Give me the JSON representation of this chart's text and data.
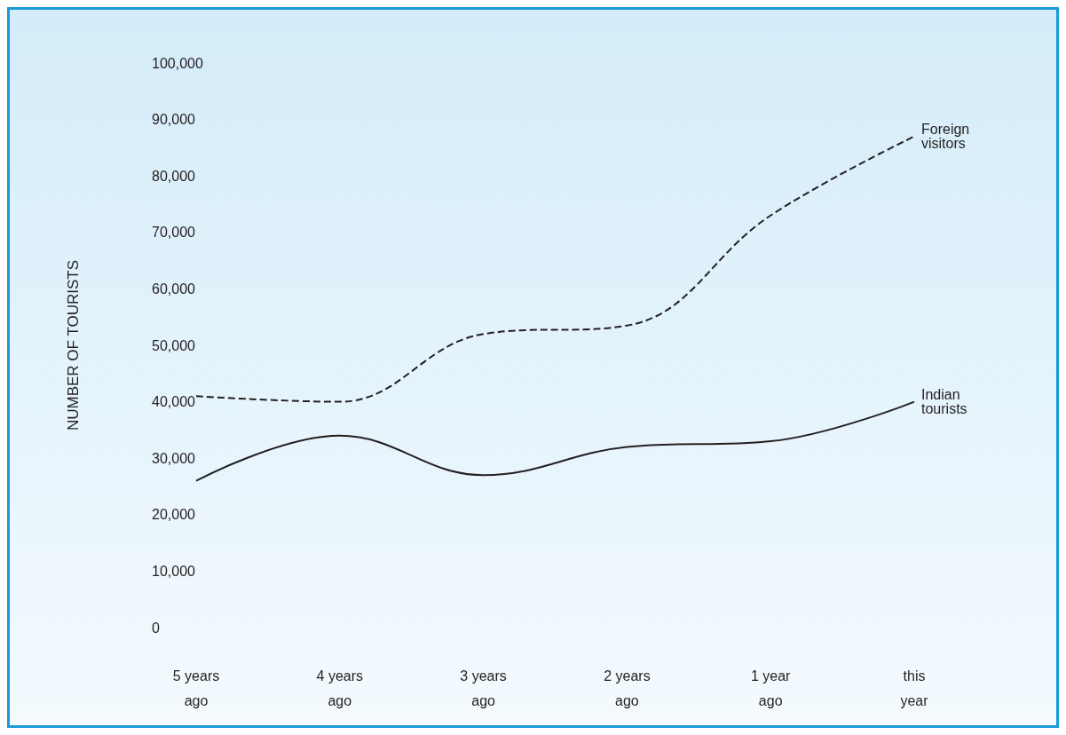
{
  "chart_data": {
    "type": "line",
    "ylabel": "NUMBER OF TOURISTS",
    "categories": [
      "5 years\nago",
      "4 years\nago",
      "3 years\nago",
      "2 years\nago",
      "1 year\nago",
      "this\nyear"
    ],
    "series": [
      {
        "name": "Foreign\nvisitors",
        "color": "#231f20",
        "line_style": "dashed",
        "values": [
          41000,
          40000,
          52000,
          53500,
          73000,
          87000
        ]
      },
      {
        "name": "Indian\ntourists",
        "color": "#231f20",
        "line_style": "solid",
        "values": [
          26000,
          34000,
          27000,
          32000,
          33000,
          40000
        ]
      }
    ],
    "ylim": [
      0,
      100000
    ],
    "yticks": [
      0,
      {
        "value": 10000,
        "label": "10,000"
      },
      {
        "value": 20000,
        "label": "20,000"
      },
      {
        "value": 30000,
        "label": "30,000"
      },
      {
        "value": 40000,
        "label": "40,000"
      },
      {
        "value": 50000,
        "label": "50,000"
      },
      {
        "value": 60000,
        "label": "60,000"
      },
      {
        "value": 70000,
        "label": "70,000"
      },
      {
        "value": 80000,
        "label": "80,000"
      },
      {
        "value": 90000,
        "label": "90,000"
      },
      {
        "value": 100000,
        "label": "100,000"
      }
    ],
    "grid": false,
    "legend": false,
    "marker": "none"
  }
}
